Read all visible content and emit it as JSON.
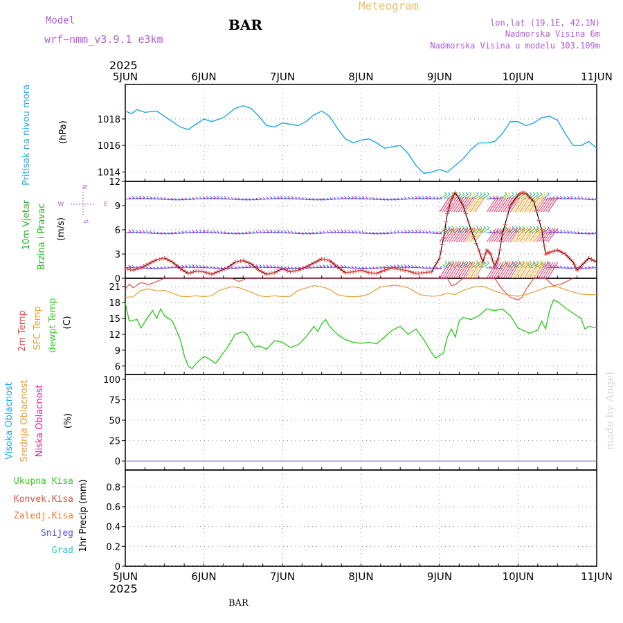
{
  "header": {
    "model_label": "Model",
    "model_name": "wrf−nmm_v3.9.1  e3km",
    "station": "BAR",
    "app_title": "Meteogram",
    "lonlat": "lon,lat (19.1E, 42.1N)",
    "elevation": "Nadmorska Visina 6m",
    "model_elevation": "Nadmorska Visina u modelu 303.109m",
    "year_top": "2025",
    "year_bottom": "2025",
    "footer_station": "BAR",
    "watermark": "made by Angel"
  },
  "colors": {
    "pressure": "#1ea7e6",
    "wind_label": "#22b522",
    "wind_speed": "#e04444",
    "wind_barb": "#9a26d6",
    "temp2m": "#e84a4a",
    "sfc_temp": "#e0a030",
    "dewpt": "#33cc22",
    "high_cloud": "#1ea7e6",
    "mid_cloud": "#e0a030",
    "low_cloud": "#e0208a",
    "total_precip": "#33cc22",
    "convective": "#e84a4a",
    "freezing": "#f07a2a",
    "snow": "#5050e0",
    "hail": "#20c8c8",
    "header_purple": "#b05ad6",
    "meteogram": "#e8c070"
  },
  "chart_data": [
    {
      "type": "line",
      "id": "pressure",
      "ylabel_main": "Pritisak na nivou mora",
      "ylabel_unit": "(hPa)",
      "ylim": [
        1013.3,
        1020.6
      ],
      "yticks": [
        1014,
        1016,
        1018
      ],
      "x_start_day": 5,
      "x_end_day": 11,
      "points": [
        [
          5.0,
          1018.6
        ],
        [
          5.08,
          1018.4
        ],
        [
          5.15,
          1018.7
        ],
        [
          5.25,
          1018.5
        ],
        [
          5.4,
          1018.6
        ],
        [
          5.55,
          1018.0
        ],
        [
          5.7,
          1017.4
        ],
        [
          5.8,
          1017.2
        ],
        [
          5.9,
          1017.6
        ],
        [
          6.0,
          1018.0
        ],
        [
          6.1,
          1017.8
        ],
        [
          6.25,
          1018.1
        ],
        [
          6.4,
          1018.8
        ],
        [
          6.5,
          1019.0
        ],
        [
          6.6,
          1018.8
        ],
        [
          6.7,
          1018.2
        ],
        [
          6.8,
          1017.5
        ],
        [
          6.9,
          1017.4
        ],
        [
          7.0,
          1017.7
        ],
        [
          7.1,
          1017.6
        ],
        [
          7.2,
          1017.5
        ],
        [
          7.3,
          1017.8
        ],
        [
          7.4,
          1018.3
        ],
        [
          7.5,
          1018.6
        ],
        [
          7.6,
          1018.2
        ],
        [
          7.7,
          1017.3
        ],
        [
          7.8,
          1016.5
        ],
        [
          7.9,
          1016.2
        ],
        [
          8.0,
          1016.4
        ],
        [
          8.1,
          1016.5
        ],
        [
          8.2,
          1016.2
        ],
        [
          8.3,
          1015.8
        ],
        [
          8.4,
          1015.9
        ],
        [
          8.5,
          1016.0
        ],
        [
          8.6,
          1015.4
        ],
        [
          8.7,
          1014.5
        ],
        [
          8.8,
          1013.9
        ],
        [
          8.9,
          1014.0
        ],
        [
          9.0,
          1014.2
        ],
        [
          9.1,
          1014.0
        ],
        [
          9.2,
          1014.5
        ],
        [
          9.3,
          1015.0
        ],
        [
          9.4,
          1015.7
        ],
        [
          9.5,
          1016.2
        ],
        [
          9.6,
          1016.2
        ],
        [
          9.7,
          1016.3
        ],
        [
          9.8,
          1016.9
        ],
        [
          9.9,
          1017.8
        ],
        [
          10.0,
          1017.8
        ],
        [
          10.1,
          1017.5
        ],
        [
          10.2,
          1017.7
        ],
        [
          10.3,
          1018.1
        ],
        [
          10.4,
          1018.2
        ],
        [
          10.5,
          1017.9
        ],
        [
          10.6,
          1016.9
        ],
        [
          10.7,
          1016.0
        ],
        [
          10.8,
          1016.0
        ],
        [
          10.9,
          1016.3
        ],
        [
          11.0,
          1015.8
        ]
      ]
    },
    {
      "type": "line",
      "id": "wind",
      "ylabel_main": "10m Vjetar",
      "ylabel_sub": "Brzina i Pravac",
      "ylabel_unit": "(m/s)",
      "compass": "N",
      "compass_s": "S",
      "compass_e": "E",
      "compass_w": "W",
      "ylim": [
        0,
        12
      ],
      "yticks": [
        0,
        3,
        6,
        9,
        12
      ],
      "barb_rows": [
        9.8,
        5.6,
        1.3
      ],
      "speed_points": [
        [
          5.0,
          1.2
        ],
        [
          5.1,
          1.0
        ],
        [
          5.2,
          1.3
        ],
        [
          5.3,
          1.8
        ],
        [
          5.4,
          2.3
        ],
        [
          5.5,
          2.5
        ],
        [
          5.6,
          2.0
        ],
        [
          5.7,
          1.2
        ],
        [
          5.8,
          0.6
        ],
        [
          5.9,
          0.9
        ],
        [
          6.0,
          0.8
        ],
        [
          6.1,
          0.5
        ],
        [
          6.2,
          0.9
        ],
        [
          6.3,
          1.3
        ],
        [
          6.4,
          2.0
        ],
        [
          6.5,
          2.2
        ],
        [
          6.6,
          1.8
        ],
        [
          6.7,
          1.0
        ],
        [
          6.8,
          0.5
        ],
        [
          6.9,
          0.7
        ],
        [
          7.0,
          1.2
        ],
        [
          7.1,
          0.8
        ],
        [
          7.2,
          1.0
        ],
        [
          7.3,
          1.4
        ],
        [
          7.4,
          1.9
        ],
        [
          7.5,
          2.4
        ],
        [
          7.6,
          2.2
        ],
        [
          7.7,
          1.4
        ],
        [
          7.8,
          0.7
        ],
        [
          7.9,
          0.8
        ],
        [
          8.0,
          1.0
        ],
        [
          8.1,
          0.7
        ],
        [
          8.2,
          0.6
        ],
        [
          8.3,
          1.0
        ],
        [
          8.4,
          1.3
        ],
        [
          8.5,
          1.1
        ],
        [
          8.6,
          0.9
        ],
        [
          8.7,
          0.6
        ],
        [
          8.8,
          0.7
        ],
        [
          8.9,
          0.8
        ],
        [
          9.0,
          2.5
        ],
        [
          9.05,
          5.0
        ],
        [
          9.1,
          8.0
        ],
        [
          9.15,
          9.8
        ],
        [
          9.2,
          10.6
        ],
        [
          9.3,
          9.0
        ],
        [
          9.4,
          6.0
        ],
        [
          9.5,
          3.5
        ],
        [
          9.55,
          2.0
        ],
        [
          9.6,
          3.5
        ],
        [
          9.65,
          3.0
        ],
        [
          9.7,
          1.5
        ],
        [
          9.75,
          2.5
        ],
        [
          9.8,
          5.5
        ],
        [
          9.9,
          9.0
        ],
        [
          10.0,
          10.3
        ],
        [
          10.05,
          10.6
        ],
        [
          10.1,
          10.5
        ],
        [
          10.2,
          9.5
        ],
        [
          10.3,
          6.0
        ],
        [
          10.35,
          3.0
        ],
        [
          10.4,
          3.2
        ],
        [
          10.5,
          3.5
        ],
        [
          10.6,
          3.0
        ],
        [
          10.7,
          2.0
        ],
        [
          10.75,
          1.0
        ],
        [
          10.8,
          1.5
        ],
        [
          10.9,
          2.5
        ],
        [
          11.0,
          2.0
        ]
      ]
    },
    {
      "type": "line",
      "id": "temperature",
      "ylabel_1": "2m Temp",
      "ylabel_2": "SFC Temp",
      "ylabel_3": "dewpt Temp",
      "ylabel_unit": "(C)",
      "ylim": [
        4.4,
        22.6
      ],
      "yticks": [
        6,
        9,
        12,
        15,
        18,
        21
      ],
      "temp2m": [
        [
          5.0,
          20.5
        ],
        [
          5.05,
          21.5
        ],
        [
          5.1,
          20.8
        ],
        [
          5.2,
          21.8
        ],
        [
          5.3,
          21.4
        ],
        [
          5.4,
          22.0
        ],
        [
          5.5,
          22.6
        ],
        [
          6.35,
          22.6
        ],
        [
          6.45,
          22.0
        ],
        [
          6.55,
          22.6
        ],
        [
          9.1,
          22.6
        ],
        [
          9.15,
          21.2
        ],
        [
          9.2,
          21.4
        ],
        [
          9.3,
          22.6
        ],
        [
          9.7,
          22.6
        ],
        [
          9.8,
          20.5
        ],
        [
          9.9,
          19.0
        ],
        [
          10.0,
          18.5
        ],
        [
          10.05,
          19.0
        ],
        [
          10.1,
          20.5
        ],
        [
          10.2,
          22.6
        ],
        [
          10.35,
          22.6
        ],
        [
          10.45,
          21.2
        ],
        [
          10.55,
          21.5
        ],
        [
          10.7,
          22.6
        ]
      ],
      "sfc_temp": [
        [
          5.0,
          19.0
        ],
        [
          5.1,
          19.1
        ],
        [
          5.2,
          20.3
        ],
        [
          5.3,
          20.6
        ],
        [
          5.4,
          20.2
        ],
        [
          5.5,
          20.3
        ],
        [
          5.6,
          19.8
        ],
        [
          5.7,
          19.2
        ],
        [
          5.8,
          19.1
        ],
        [
          5.9,
          19.3
        ],
        [
          6.0,
          19.1
        ],
        [
          6.1,
          19.3
        ],
        [
          6.2,
          20.3
        ],
        [
          6.35,
          21.0
        ],
        [
          6.45,
          20.8
        ],
        [
          6.6,
          20.0
        ],
        [
          6.7,
          19.3
        ],
        [
          6.8,
          19.1
        ],
        [
          6.9,
          19.3
        ],
        [
          7.0,
          19.1
        ],
        [
          7.1,
          19.2
        ],
        [
          7.2,
          20.3
        ],
        [
          7.4,
          21.2
        ],
        [
          7.5,
          21.0
        ],
        [
          7.6,
          20.5
        ],
        [
          7.7,
          19.5
        ],
        [
          7.8,
          19.2
        ],
        [
          7.9,
          19.1
        ],
        [
          8.0,
          19.2
        ],
        [
          8.1,
          19.6
        ],
        [
          8.25,
          21.0
        ],
        [
          8.45,
          21.3
        ],
        [
          8.6,
          20.8
        ],
        [
          8.75,
          19.5
        ],
        [
          8.9,
          19.2
        ],
        [
          9.0,
          19.3
        ],
        [
          9.1,
          19.8
        ],
        [
          9.2,
          19.5
        ],
        [
          9.3,
          20.3
        ],
        [
          9.45,
          21.0
        ],
        [
          9.55,
          21.1
        ],
        [
          9.7,
          20.2
        ],
        [
          9.85,
          19.5
        ],
        [
          10.0,
          19.2
        ],
        [
          10.1,
          19.5
        ],
        [
          10.25,
          20.3
        ],
        [
          10.4,
          21.1
        ],
        [
          10.5,
          21.0
        ],
        [
          10.65,
          20.2
        ],
        [
          10.8,
          19.6
        ],
        [
          10.9,
          19.5
        ],
        [
          11.0,
          19.5
        ]
      ],
      "dewpt": [
        [
          5.0,
          18.0
        ],
        [
          5.05,
          14.5
        ],
        [
          5.15,
          14.8
        ],
        [
          5.2,
          13.2
        ],
        [
          5.3,
          15.5
        ],
        [
          5.35,
          16.5
        ],
        [
          5.4,
          15.0
        ],
        [
          5.45,
          16.8
        ],
        [
          5.5,
          15.5
        ],
        [
          5.6,
          14.5
        ],
        [
          5.7,
          11.0
        ],
        [
          5.75,
          8.0
        ],
        [
          5.8,
          6.0
        ],
        [
          5.85,
          5.5
        ],
        [
          5.9,
          6.5
        ],
        [
          6.0,
          7.8
        ],
        [
          6.05,
          7.5
        ],
        [
          6.1,
          7.0
        ],
        [
          6.15,
          6.5
        ],
        [
          6.2,
          7.5
        ],
        [
          6.3,
          9.5
        ],
        [
          6.4,
          12.0
        ],
        [
          6.5,
          12.5
        ],
        [
          6.55,
          12.0
        ],
        [
          6.6,
          10.5
        ],
        [
          6.65,
          9.5
        ],
        [
          6.7,
          9.8
        ],
        [
          6.8,
          9.2
        ],
        [
          6.9,
          10.8
        ],
        [
          7.0,
          10.5
        ],
        [
          7.1,
          9.5
        ],
        [
          7.2,
          10.0
        ],
        [
          7.3,
          11.5
        ],
        [
          7.4,
          13.5
        ],
        [
          7.45,
          12.5
        ],
        [
          7.5,
          14.0
        ],
        [
          7.55,
          14.8
        ],
        [
          7.6,
          13.5
        ],
        [
          7.7,
          12.0
        ],
        [
          7.8,
          11.0
        ],
        [
          7.9,
          10.5
        ],
        [
          8.0,
          10.3
        ],
        [
          8.1,
          10.5
        ],
        [
          8.2,
          10.2
        ],
        [
          8.3,
          11.5
        ],
        [
          8.4,
          12.8
        ],
        [
          8.5,
          13.5
        ],
        [
          8.6,
          12.0
        ],
        [
          8.7,
          13.0
        ],
        [
          8.8,
          11.0
        ],
        [
          8.9,
          8.5
        ],
        [
          8.95,
          7.5
        ],
        [
          9.0,
          8.0
        ],
        [
          9.05,
          8.5
        ],
        [
          9.1,
          11.5
        ],
        [
          9.15,
          13.0
        ],
        [
          9.2,
          11.5
        ],
        [
          9.25,
          14.5
        ],
        [
          9.3,
          15.2
        ],
        [
          9.4,
          14.8
        ],
        [
          9.5,
          15.5
        ],
        [
          9.6,
          16.8
        ],
        [
          9.7,
          16.5
        ],
        [
          9.8,
          16.8
        ],
        [
          9.9,
          15.5
        ],
        [
          10.0,
          13.2
        ],
        [
          10.1,
          12.5
        ],
        [
          10.15,
          12.2
        ],
        [
          10.25,
          12.8
        ],
        [
          10.3,
          14.5
        ],
        [
          10.35,
          13.0
        ],
        [
          10.4,
          16.5
        ],
        [
          10.45,
          18.5
        ],
        [
          10.5,
          18.2
        ],
        [
          10.6,
          17.0
        ],
        [
          10.7,
          16.0
        ],
        [
          10.8,
          15.0
        ],
        [
          10.85,
          13.0
        ],
        [
          10.9,
          13.5
        ],
        [
          11.0,
          13.2
        ]
      ]
    },
    {
      "type": "line",
      "id": "cloud",
      "ylabel_1": "Visoka Oblacnost",
      "ylabel_2": "Srednja Oblacnost",
      "ylabel_3": "Niska Oblacnost",
      "ylabel_unit": "(%)",
      "ylim": [
        -11,
        106
      ],
      "yticks": [
        0,
        25,
        50,
        75,
        100
      ],
      "high": 0,
      "mid": 0,
      "low": 0
    },
    {
      "type": "line",
      "id": "precip",
      "ylabel_main": "1hr Precip (mm)",
      "legend": [
        "Ukupna  Kisa",
        "Konvek.Kisa",
        "Zaledj.Kisa",
        "Snijeg",
        "Grad"
      ],
      "ylim": [
        0,
        0.97
      ],
      "yticks": [
        0,
        0.2,
        0.4,
        0.6,
        0.8
      ],
      "ytick_labels": [
        "0",
        "0.2",
        "0.4",
        "0.6",
        "0.8"
      ],
      "values": 0
    }
  ],
  "x_axis": {
    "tick_labels": [
      "5JUN",
      "6JUN",
      "7JUN",
      "8JUN",
      "9JUN",
      "10JUN",
      "11JUN"
    ],
    "tick_days": [
      5,
      6,
      7,
      8,
      9,
      10,
      11
    ]
  }
}
